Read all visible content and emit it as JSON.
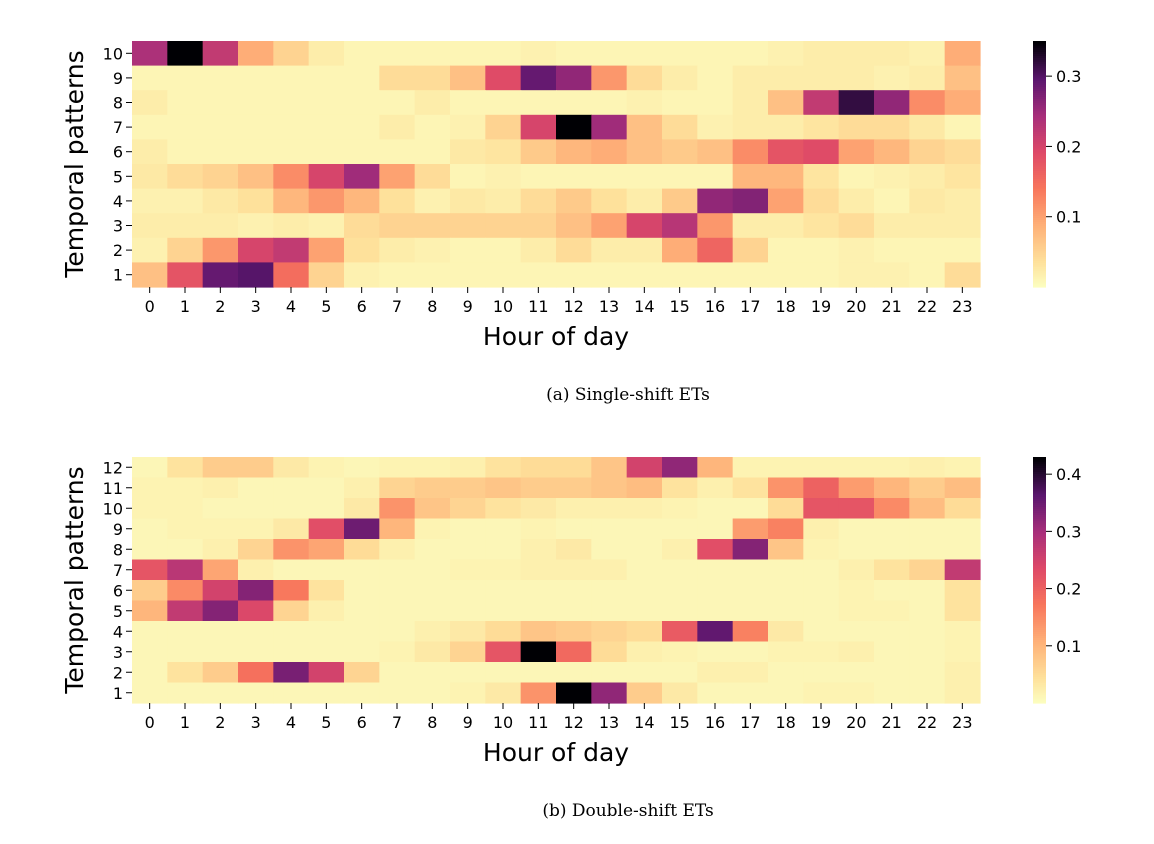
{
  "chart_data": [
    {
      "type": "heatmap",
      "title": "",
      "xlabel": "Hour of day",
      "ylabel": "Temporal patterns",
      "caption": "(a) Single-shift ETs",
      "x_categories": [
        "0",
        "1",
        "2",
        "3",
        "4",
        "5",
        "6",
        "7",
        "8",
        "9",
        "10",
        "11",
        "12",
        "13",
        "14",
        "15",
        "16",
        "17",
        "18",
        "19",
        "20",
        "21",
        "22",
        "23"
      ],
      "y_categories": [
        "10",
        "9",
        "8",
        "7",
        "6",
        "5",
        "4",
        "3",
        "2",
        "1"
      ],
      "colormap": "magma_r",
      "vmin": 0,
      "vmax": 0.35,
      "colorbar_ticks": [
        "0.1",
        "0.2",
        "0.3"
      ],
      "colorbar_tick_values": [
        0.1,
        0.2,
        0.3
      ],
      "values": [
        [
          0.24,
          0.35,
          0.22,
          0.09,
          0.05,
          0.02,
          0.01,
          0.01,
          0.01,
          0.01,
          0.01,
          0.015,
          0.01,
          0.01,
          0.01,
          0.01,
          0.01,
          0.01,
          0.015,
          0.02,
          0.02,
          0.02,
          0.015,
          0.09
        ],
        [
          0.01,
          0.01,
          0.01,
          0.01,
          0.01,
          0.01,
          0.01,
          0.04,
          0.04,
          0.07,
          0.19,
          0.29,
          0.26,
          0.11,
          0.04,
          0.02,
          0.01,
          0.02,
          0.02,
          0.02,
          0.02,
          0.015,
          0.02,
          0.07
        ],
        [
          0.02,
          0.01,
          0.01,
          0.01,
          0.01,
          0.01,
          0.01,
          0.01,
          0.02,
          0.01,
          0.01,
          0.01,
          0.01,
          0.01,
          0.015,
          0.01,
          0.01,
          0.02,
          0.07,
          0.22,
          0.32,
          0.26,
          0.12,
          0.09
        ],
        [
          0.01,
          0.01,
          0.01,
          0.01,
          0.01,
          0.01,
          0.01,
          0.02,
          0.01,
          0.015,
          0.05,
          0.2,
          0.35,
          0.25,
          0.07,
          0.04,
          0.015,
          0.02,
          0.02,
          0.03,
          0.04,
          0.04,
          0.025,
          0.01
        ],
        [
          0.02,
          0.01,
          0.01,
          0.01,
          0.01,
          0.01,
          0.01,
          0.01,
          0.01,
          0.025,
          0.03,
          0.06,
          0.08,
          0.09,
          0.07,
          0.06,
          0.07,
          0.12,
          0.18,
          0.19,
          0.1,
          0.08,
          0.05,
          0.04
        ],
        [
          0.025,
          0.04,
          0.05,
          0.07,
          0.12,
          0.2,
          0.25,
          0.1,
          0.04,
          0.01,
          0.015,
          0.01,
          0.01,
          0.01,
          0.01,
          0.01,
          0.01,
          0.08,
          0.08,
          0.03,
          0.01,
          0.015,
          0.02,
          0.03
        ],
        [
          0.015,
          0.015,
          0.025,
          0.035,
          0.08,
          0.11,
          0.08,
          0.035,
          0.015,
          0.025,
          0.02,
          0.04,
          0.06,
          0.035,
          0.02,
          0.06,
          0.26,
          0.27,
          0.1,
          0.04,
          0.02,
          0.01,
          0.025,
          0.02
        ],
        [
          0.02,
          0.02,
          0.02,
          0.015,
          0.02,
          0.015,
          0.04,
          0.05,
          0.05,
          0.05,
          0.05,
          0.05,
          0.07,
          0.1,
          0.2,
          0.23,
          0.11,
          0.02,
          0.02,
          0.03,
          0.04,
          0.02,
          0.02,
          0.02
        ],
        [
          0.015,
          0.05,
          0.11,
          0.2,
          0.22,
          0.1,
          0.035,
          0.02,
          0.015,
          0.01,
          0.01,
          0.02,
          0.04,
          0.02,
          0.02,
          0.09,
          0.16,
          0.05,
          0.01,
          0.01,
          0.015,
          0.01,
          0.01,
          0.01
        ],
        [
          0.07,
          0.18,
          0.29,
          0.3,
          0.15,
          0.05,
          0.015,
          0.01,
          0.01,
          0.01,
          0.01,
          0.01,
          0.01,
          0.01,
          0.01,
          0.01,
          0.01,
          0.01,
          0.01,
          0.01,
          0.015,
          0.015,
          0.01,
          0.04
        ]
      ]
    },
    {
      "type": "heatmap",
      "title": "",
      "xlabel": "Hour of day",
      "ylabel": "Temporal patterns",
      "caption": "(b) Double-shift ETs",
      "x_categories": [
        "0",
        "1",
        "2",
        "3",
        "4",
        "5",
        "6",
        "7",
        "8",
        "9",
        "10",
        "11",
        "12",
        "13",
        "14",
        "15",
        "16",
        "17",
        "18",
        "19",
        "20",
        "21",
        "22",
        "23"
      ],
      "y_categories": [
        "12",
        "11",
        "10",
        "9",
        "8",
        "7",
        "6",
        "5",
        "4",
        "3",
        "2",
        "1"
      ],
      "colormap": "magma_r",
      "vmin": 0,
      "vmax": 0.43,
      "colorbar_ticks": [
        "0.1",
        "0.2",
        "0.3",
        "0.4"
      ],
      "colorbar_tick_values": [
        0.1,
        0.2,
        0.3,
        0.4
      ],
      "values": [
        [
          0.01,
          0.04,
          0.07,
          0.07,
          0.03,
          0.015,
          0.01,
          0.015,
          0.015,
          0.02,
          0.04,
          0.05,
          0.05,
          0.08,
          0.25,
          0.32,
          0.1,
          0.015,
          0.015,
          0.015,
          0.015,
          0.015,
          0.02,
          0.015
        ],
        [
          0.015,
          0.015,
          0.02,
          0.01,
          0.01,
          0.01,
          0.02,
          0.06,
          0.07,
          0.07,
          0.08,
          0.07,
          0.07,
          0.08,
          0.09,
          0.04,
          0.02,
          0.04,
          0.14,
          0.2,
          0.13,
          0.1,
          0.07,
          0.09
        ],
        [
          0.015,
          0.015,
          0.01,
          0.01,
          0.01,
          0.01,
          0.03,
          0.14,
          0.08,
          0.06,
          0.04,
          0.03,
          0.02,
          0.02,
          0.02,
          0.015,
          0.01,
          0.01,
          0.05,
          0.22,
          0.22,
          0.15,
          0.09,
          0.05
        ],
        [
          0.01,
          0.015,
          0.015,
          0.015,
          0.03,
          0.23,
          0.35,
          0.1,
          0.015,
          0.01,
          0.01,
          0.015,
          0.01,
          0.01,
          0.01,
          0.01,
          0.01,
          0.13,
          0.16,
          0.02,
          0.01,
          0.01,
          0.01,
          0.01
        ],
        [
          0.01,
          0.01,
          0.02,
          0.06,
          0.14,
          0.12,
          0.05,
          0.02,
          0.01,
          0.01,
          0.01,
          0.02,
          0.03,
          0.01,
          0.01,
          0.02,
          0.23,
          0.33,
          0.08,
          0.015,
          0.01,
          0.01,
          0.01,
          0.01
        ],
        [
          0.22,
          0.28,
          0.12,
          0.02,
          0.01,
          0.01,
          0.01,
          0.01,
          0.01,
          0.015,
          0.015,
          0.02,
          0.02,
          0.02,
          0.01,
          0.01,
          0.01,
          0.01,
          0.01,
          0.01,
          0.02,
          0.04,
          0.06,
          0.27
        ],
        [
          0.07,
          0.15,
          0.25,
          0.33,
          0.17,
          0.04,
          0.01,
          0.01,
          0.01,
          0.01,
          0.01,
          0.01,
          0.01,
          0.01,
          0.01,
          0.01,
          0.01,
          0.01,
          0.01,
          0.01,
          0.015,
          0.01,
          0.01,
          0.04
        ],
        [
          0.1,
          0.27,
          0.33,
          0.24,
          0.06,
          0.02,
          0.01,
          0.01,
          0.01,
          0.01,
          0.01,
          0.01,
          0.01,
          0.01,
          0.01,
          0.01,
          0.01,
          0.01,
          0.01,
          0.01,
          0.015,
          0.015,
          0.01,
          0.04
        ],
        [
          0.01,
          0.01,
          0.01,
          0.01,
          0.01,
          0.01,
          0.01,
          0.01,
          0.02,
          0.03,
          0.05,
          0.08,
          0.07,
          0.06,
          0.05,
          0.21,
          0.36,
          0.16,
          0.03,
          0.01,
          0.01,
          0.01,
          0.01,
          0.015
        ],
        [
          0.01,
          0.01,
          0.01,
          0.01,
          0.01,
          0.01,
          0.01,
          0.015,
          0.03,
          0.06,
          0.22,
          0.43,
          0.19,
          0.05,
          0.02,
          0.015,
          0.01,
          0.01,
          0.015,
          0.015,
          0.02,
          0.01,
          0.01,
          0.015
        ],
        [
          0.01,
          0.04,
          0.07,
          0.18,
          0.34,
          0.25,
          0.06,
          0.01,
          0.01,
          0.01,
          0.01,
          0.01,
          0.01,
          0.01,
          0.01,
          0.01,
          0.02,
          0.02,
          0.01,
          0.01,
          0.01,
          0.01,
          0.01,
          0.02
        ],
        [
          0.01,
          0.01,
          0.01,
          0.01,
          0.01,
          0.01,
          0.01,
          0.01,
          0.01,
          0.015,
          0.03,
          0.14,
          0.43,
          0.32,
          0.07,
          0.03,
          0.01,
          0.01,
          0.01,
          0.015,
          0.015,
          0.01,
          0.01,
          0.02
        ]
      ]
    }
  ]
}
